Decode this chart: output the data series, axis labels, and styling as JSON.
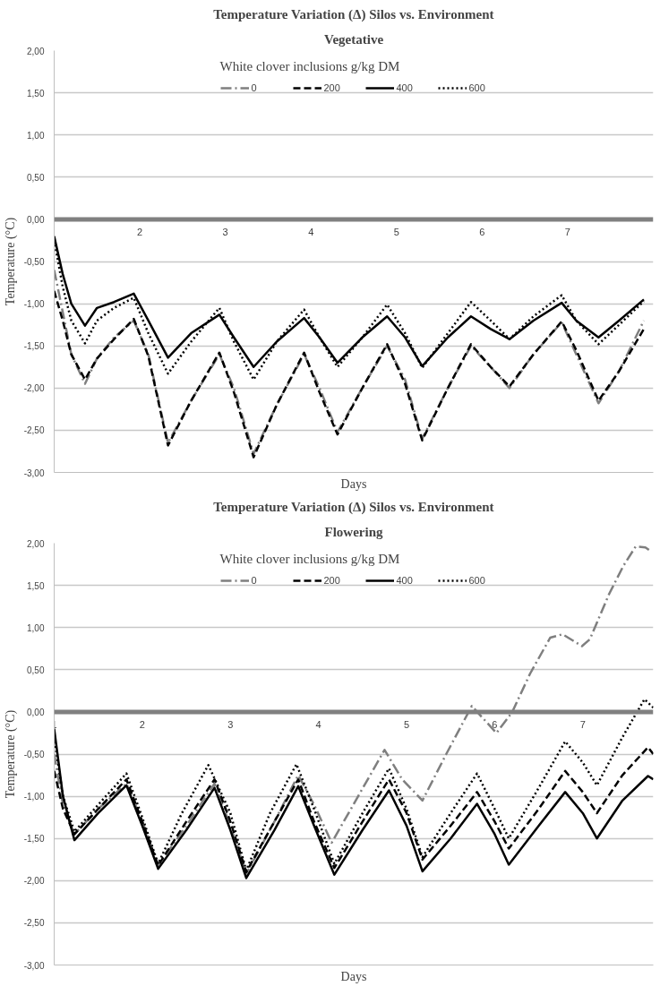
{
  "chart_data": [
    {
      "type": "line",
      "title": "Temperature Variation (Δ) Silos vs. Environment",
      "subtitle": "Vegetative",
      "xlabel": "Days",
      "ylabel": "Temperature (°C)",
      "legend_title": "White clover inclusions g/kg DM",
      "legend": "top",
      "grid": "y",
      "xlim": [
        1,
        8
      ],
      "xticks": [
        2,
        3,
        4,
        5,
        6,
        7
      ],
      "ylim": [
        -3,
        2
      ],
      "yticks": [
        {
          "value": -3,
          "label": "-3,00"
        },
        {
          "value": -2.5,
          "label": "-2,50"
        },
        {
          "value": -2,
          "label": "-2,00"
        },
        {
          "value": -1.5,
          "label": "-1,50"
        },
        {
          "value": -1,
          "label": "-1,00"
        },
        {
          "value": -0.5,
          "label": "-0,50"
        },
        {
          "value": 0,
          "label": "0,00"
        },
        {
          "value": 0.5,
          "label": "0,50"
        },
        {
          "value": 1,
          "label": "1,00"
        },
        {
          "value": 1.5,
          "label": "1,50"
        },
        {
          "value": 2,
          "label": "2,00"
        }
      ],
      "x": [
        1.0,
        1.1,
        1.2,
        1.36,
        1.5,
        1.7,
        1.93,
        2.1,
        2.33,
        2.6,
        2.93,
        3.1,
        3.33,
        3.6,
        3.92,
        4.1,
        4.31,
        4.6,
        4.89,
        5.1,
        5.3,
        5.6,
        5.87,
        6.1,
        6.32,
        6.6,
        6.93,
        7.1,
        7.36,
        7.6,
        7.89
      ],
      "series": [
        {
          "name": "0",
          "color": "#7f7f7f",
          "line_style": "dashdot",
          "values": [
            -0.6,
            -1.1,
            -1.6,
            -1.95,
            -1.65,
            -1.4,
            -1.2,
            -1.6,
            -2.65,
            -2.15,
            -1.6,
            -2.0,
            -2.78,
            -2.2,
            -1.6,
            -2.0,
            -2.52,
            -2.0,
            -1.5,
            -1.9,
            -2.6,
            -2.0,
            -1.5,
            -1.75,
            -2.0,
            -1.6,
            -1.22,
            -1.6,
            -2.18,
            -1.8,
            -1.2
          ]
        },
        {
          "name": "200",
          "color": "#000000",
          "line_style": "dashed",
          "values": [
            -0.85,
            -1.2,
            -1.6,
            -1.9,
            -1.65,
            -1.42,
            -1.18,
            -1.62,
            -2.68,
            -2.15,
            -1.58,
            -2.05,
            -2.82,
            -2.2,
            -1.58,
            -2.05,
            -2.55,
            -2.0,
            -1.48,
            -1.95,
            -2.62,
            -2.0,
            -1.48,
            -1.75,
            -1.98,
            -1.6,
            -1.21,
            -1.55,
            -2.15,
            -1.8,
            -1.3
          ]
        },
        {
          "name": "400",
          "color": "#000000",
          "line_style": "solid",
          "values": [
            -0.2,
            -0.65,
            -1.0,
            -1.26,
            -1.05,
            -0.98,
            -0.88,
            -1.2,
            -1.64,
            -1.35,
            -1.13,
            -1.4,
            -1.75,
            -1.45,
            -1.17,
            -1.4,
            -1.7,
            -1.4,
            -1.15,
            -1.4,
            -1.74,
            -1.4,
            -1.15,
            -1.3,
            -1.42,
            -1.2,
            -0.99,
            -1.2,
            -1.4,
            -1.2,
            -0.95
          ]
        },
        {
          "name": "600",
          "color": "#000000",
          "line_style": "dotted",
          "values": [
            -0.25,
            -0.8,
            -1.2,
            -1.47,
            -1.2,
            -1.05,
            -0.93,
            -1.35,
            -1.83,
            -1.45,
            -1.05,
            -1.45,
            -1.9,
            -1.45,
            -1.07,
            -1.4,
            -1.75,
            -1.4,
            -1.01,
            -1.35,
            -1.76,
            -1.35,
            -0.98,
            -1.2,
            -1.42,
            -1.15,
            -0.9,
            -1.2,
            -1.48,
            -1.25,
            -0.97
          ]
        }
      ]
    },
    {
      "type": "line",
      "title": "Temperature Variation (Δ) Silos vs. Environment",
      "subtitle": "Flowering",
      "xlabel": "Days",
      "ylabel": "Temperature (°C)",
      "legend_title": "White clover inclusions g/kg DM",
      "legend": "top",
      "grid": "y",
      "xlim": [
        1,
        7.8
      ],
      "xticks": [
        1,
        2,
        3,
        4,
        5,
        6,
        7
      ],
      "ylim": [
        -3,
        2
      ],
      "yticks": [
        {
          "value": -3,
          "label": "-3,00"
        },
        {
          "value": -2.5,
          "label": "-2,50"
        },
        {
          "value": -2,
          "label": "-2,00"
        },
        {
          "value": -1.5,
          "label": "-1,50"
        },
        {
          "value": -1,
          "label": "-1,00"
        },
        {
          "value": -0.5,
          "label": "-0,50"
        },
        {
          "value": 0,
          "label": "0,00"
        },
        {
          "value": 0.5,
          "label": "0,50"
        },
        {
          "value": 1,
          "label": "1,00"
        },
        {
          "value": 1.5,
          "label": "1,50"
        },
        {
          "value": 2,
          "label": "2,00"
        }
      ],
      "series": [
        {
          "name": "0",
          "color": "#7f7f7f",
          "line_style": "dashdot",
          "x": [
            1.0,
            1.1,
            1.23,
            1.5,
            1.82,
            2.0,
            2.18,
            2.5,
            2.82,
            3.0,
            3.18,
            3.5,
            3.77,
            3.95,
            4.15,
            4.45,
            4.75,
            4.95,
            5.18,
            5.45,
            5.74,
            6.02,
            6.2,
            6.4,
            6.63,
            6.77,
            6.99,
            7.08,
            7.3,
            7.46,
            7.6,
            7.71,
            7.78
          ],
          "values": [
            -0.5,
            -1.1,
            -1.45,
            -1.15,
            -0.85,
            -1.3,
            -1.82,
            -1.35,
            -0.85,
            -1.35,
            -1.92,
            -1.3,
            -0.75,
            -1.1,
            -1.55,
            -1.0,
            -0.45,
            -0.8,
            -1.05,
            -0.5,
            0.07,
            -0.25,
            0.0,
            0.45,
            0.88,
            0.92,
            0.78,
            0.86,
            1.4,
            1.73,
            1.96,
            1.95,
            1.9
          ]
        },
        {
          "name": "200",
          "color": "#000000",
          "line_style": "dashed",
          "x": [
            1.0,
            1.1,
            1.23,
            1.5,
            1.82,
            2.0,
            2.18,
            2.5,
            2.82,
            3.0,
            3.18,
            3.5,
            3.77,
            3.95,
            4.18,
            4.5,
            4.8,
            5.0,
            5.18,
            5.5,
            5.8,
            6.0,
            6.16,
            6.5,
            6.8,
            7.0,
            7.16,
            7.45,
            7.74,
            7.8
          ],
          "values": [
            -0.7,
            -1.15,
            -1.45,
            -1.15,
            -0.8,
            -1.3,
            -1.82,
            -1.3,
            -0.8,
            -1.3,
            -1.9,
            -1.3,
            -0.8,
            -1.3,
            -1.85,
            -1.3,
            -0.8,
            -1.2,
            -1.75,
            -1.35,
            -0.95,
            -1.3,
            -1.62,
            -1.15,
            -0.7,
            -0.95,
            -1.2,
            -0.75,
            -0.42,
            -0.5
          ]
        },
        {
          "name": "400",
          "color": "#000000",
          "line_style": "solid",
          "x": [
            1.0,
            1.1,
            1.23,
            1.5,
            1.82,
            2.0,
            2.18,
            2.5,
            2.82,
            3.0,
            3.18,
            3.5,
            3.77,
            3.95,
            4.18,
            4.5,
            4.8,
            5.0,
            5.18,
            5.5,
            5.8,
            6.0,
            6.16,
            6.5,
            6.8,
            7.0,
            7.16,
            7.45,
            7.74,
            7.8
          ],
          "values": [
            -0.2,
            -1.0,
            -1.52,
            -1.2,
            -0.87,
            -1.35,
            -1.86,
            -1.4,
            -0.9,
            -1.4,
            -1.97,
            -1.4,
            -0.88,
            -1.35,
            -1.93,
            -1.4,
            -0.93,
            -1.35,
            -1.89,
            -1.5,
            -1.09,
            -1.45,
            -1.81,
            -1.35,
            -0.95,
            -1.2,
            -1.5,
            -1.05,
            -0.76,
            -0.8
          ]
        },
        {
          "name": "600",
          "color": "#000000",
          "line_style": "dotted",
          "x": [
            1.0,
            1.1,
            1.23,
            1.5,
            1.82,
            2.0,
            2.18,
            2.45,
            2.75,
            3.0,
            3.18,
            3.45,
            3.75,
            3.95,
            4.18,
            4.5,
            4.8,
            5.0,
            5.18,
            5.5,
            5.8,
            6.0,
            6.16,
            6.5,
            6.8,
            7.0,
            7.16,
            7.45,
            7.7,
            7.8
          ],
          "values": [
            -0.3,
            -1.0,
            -1.42,
            -1.1,
            -0.73,
            -1.25,
            -1.8,
            -1.2,
            -0.63,
            -1.2,
            -1.88,
            -1.2,
            -0.62,
            -1.15,
            -1.8,
            -1.2,
            -0.67,
            -1.15,
            -1.72,
            -1.2,
            -0.73,
            -1.15,
            -1.5,
            -0.9,
            -0.35,
            -0.6,
            -0.87,
            -0.3,
            0.15,
            0.05
          ]
        }
      ]
    }
  ]
}
